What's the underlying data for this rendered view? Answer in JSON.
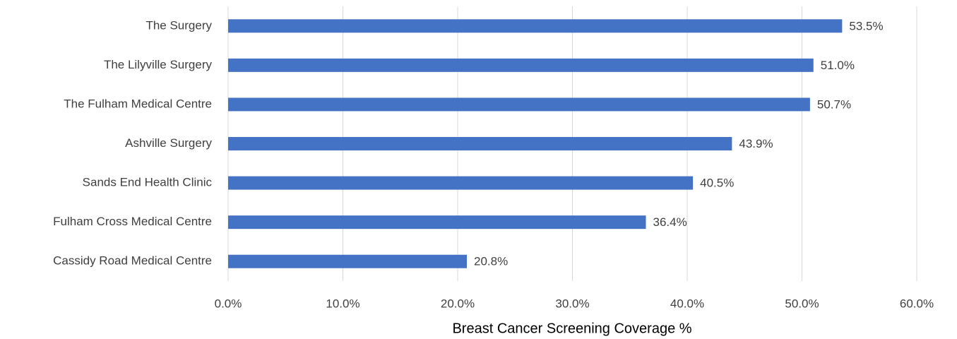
{
  "chart_data": {
    "type": "bar",
    "orientation": "horizontal",
    "x_label": "Breast Cancer Screening Coverage %",
    "categories": [
      "The Surgery",
      "The Lilyville Surgery",
      "The Fulham Medical Centre",
      "Ashville Surgery",
      "Sands End Health Clinic",
      "Fulham Cross Medical Centre",
      "Cassidy Road Medical Centre"
    ],
    "values": [
      53.5,
      51.0,
      50.7,
      43.9,
      40.5,
      36.4,
      20.8
    ],
    "value_labels": [
      "53.5%",
      "51.0%",
      "50.7%",
      "43.9%",
      "40.5%",
      "36.4%",
      "20.8%"
    ],
    "color": "#4472c4",
    "xlim": [
      0,
      60
    ],
    "xticks": [
      {
        "value": 0,
        "label": "0.0%"
      },
      {
        "value": 10,
        "label": "10.0%"
      },
      {
        "value": 20,
        "label": "20.0%"
      },
      {
        "value": 30,
        "label": "30.0%"
      },
      {
        "value": 40,
        "label": "40.0%"
      },
      {
        "value": 50,
        "label": "50.0%"
      },
      {
        "value": 60,
        "label": "60.0%"
      }
    ],
    "grid": true
  }
}
